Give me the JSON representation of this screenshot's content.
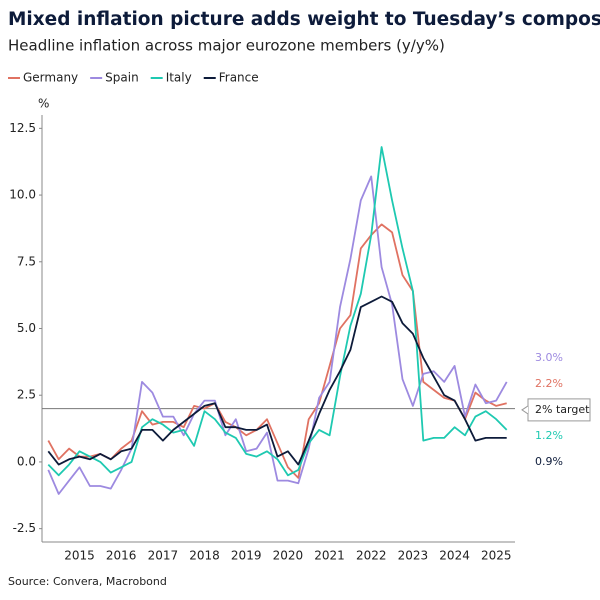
{
  "chart_data": {
    "type": "line",
    "title": "Mixed inflation picture adds weight to Tuesday’s composite",
    "subtitle": "Headline inflation across major eurozone members (y/y%)",
    "y_label": "%",
    "source": "Source: Convera, Macrobond",
    "x": [
      2014.75,
      2015,
      2015.25,
      2015.5,
      2015.75,
      2016,
      2016.25,
      2016.5,
      2016.75,
      2017,
      2017.25,
      2017.5,
      2017.75,
      2018,
      2018.25,
      2018.5,
      2018.75,
      2019,
      2019.25,
      2019.5,
      2019.75,
      2020,
      2020.25,
      2020.5,
      2020.75,
      2021,
      2021.25,
      2021.5,
      2021.75,
      2022,
      2022.25,
      2022.5,
      2022.75,
      2023,
      2023.25,
      2023.5,
      2023.75,
      2024,
      2024.25,
      2024.5,
      2024.75,
      2025,
      2025.25,
      2025.5,
      2025.75
    ],
    "series": [
      {
        "name": "Germany",
        "color": "#e07262",
        "end_label": "2.2%",
        "values": [
          0.8,
          0.1,
          0.5,
          0.2,
          0.2,
          0.3,
          0.1,
          0.5,
          0.8,
          1.9,
          1.4,
          1.5,
          1.5,
          1.3,
          2.1,
          2.0,
          2.2,
          1.5,
          1.3,
          1.0,
          1.2,
          1.6,
          0.7,
          -0.2,
          -0.6,
          1.6,
          2.2,
          3.6,
          5.0,
          5.5,
          8.0,
          8.5,
          8.9,
          8.6,
          7.0,
          6.4,
          3.0,
          2.7,
          2.4,
          2.3,
          1.6,
          2.6,
          2.3,
          2.1,
          2.2
        ]
      },
      {
        "name": "Spain",
        "color": "#9d8ae0",
        "end_label": "3.0%",
        "values": [
          -0.3,
          -1.2,
          -0.7,
          -0.2,
          -0.9,
          -0.9,
          -1.0,
          -0.3,
          0.5,
          3.0,
          2.6,
          1.7,
          1.7,
          1.0,
          1.8,
          2.3,
          2.3,
          1.0,
          1.6,
          0.4,
          0.5,
          1.1,
          -0.7,
          -0.7,
          -0.8,
          0.5,
          2.4,
          3.0,
          5.8,
          7.6,
          9.8,
          10.7,
          7.3,
          5.9,
          3.1,
          2.1,
          3.3,
          3.4,
          3.0,
          3.6,
          1.7,
          2.9,
          2.2,
          2.3,
          3.0
        ]
      },
      {
        "name": "Italy",
        "color": "#1ec9b1",
        "end_label": "1.2%",
        "values": [
          -0.1,
          -0.5,
          -0.1,
          0.4,
          0.2,
          0.0,
          -0.4,
          -0.2,
          0.0,
          1.3,
          1.6,
          1.4,
          1.1,
          1.2,
          0.6,
          1.9,
          1.6,
          1.1,
          0.9,
          0.3,
          0.2,
          0.4,
          0.1,
          -0.5,
          -0.3,
          0.7,
          1.2,
          1.0,
          3.2,
          5.1,
          6.3,
          8.5,
          11.8,
          9.8,
          8.0,
          6.4,
          0.8,
          0.9,
          0.9,
          1.3,
          1.0,
          1.7,
          1.9,
          1.6,
          1.2
        ]
      },
      {
        "name": "France",
        "color": "#0d1b3a",
        "end_label": "0.9%",
        "values": [
          0.4,
          -0.1,
          0.1,
          0.2,
          0.1,
          0.3,
          0.1,
          0.4,
          0.5,
          1.2,
          1.2,
          0.8,
          1.2,
          1.5,
          1.8,
          2.1,
          2.2,
          1.3,
          1.3,
          1.2,
          1.2,
          1.4,
          0.2,
          0.4,
          -0.1,
          0.8,
          1.8,
          2.7,
          3.4,
          4.2,
          5.8,
          6.0,
          6.2,
          6.0,
          5.2,
          4.8,
          3.9,
          3.2,
          2.5,
          2.3,
          1.6,
          0.8,
          0.9,
          0.9,
          0.9
        ]
      }
    ],
    "reference_line": {
      "value": 2,
      "label": "2% target"
    },
    "xlim": [
      2014.6,
      2025.95
    ],
    "xticks": [
      {
        "value": 2015.5,
        "label": "2015"
      },
      {
        "value": 2016.5,
        "label": "2016"
      },
      {
        "value": 2017.5,
        "label": "2017"
      },
      {
        "value": 2018.5,
        "label": "2018"
      },
      {
        "value": 2019.5,
        "label": "2019"
      },
      {
        "value": 2020.5,
        "label": "2020"
      },
      {
        "value": 2021.5,
        "label": "2021"
      },
      {
        "value": 2022.5,
        "label": "2022"
      },
      {
        "value": 2023.5,
        "label": "2023"
      },
      {
        "value": 2024.5,
        "label": "2024"
      },
      {
        "value": 2025.5,
        "label": "2025"
      }
    ],
    "ylim": [
      -3,
      13
    ],
    "yticks": [
      -2.5,
      {
        "value": 0,
        "label": "0.0"
      },
      2.5,
      {
        "value": 5,
        "label": "5.0"
      },
      7.5,
      {
        "value": 10,
        "label": "10.0"
      },
      12.5
    ],
    "legend": "top-left"
  }
}
